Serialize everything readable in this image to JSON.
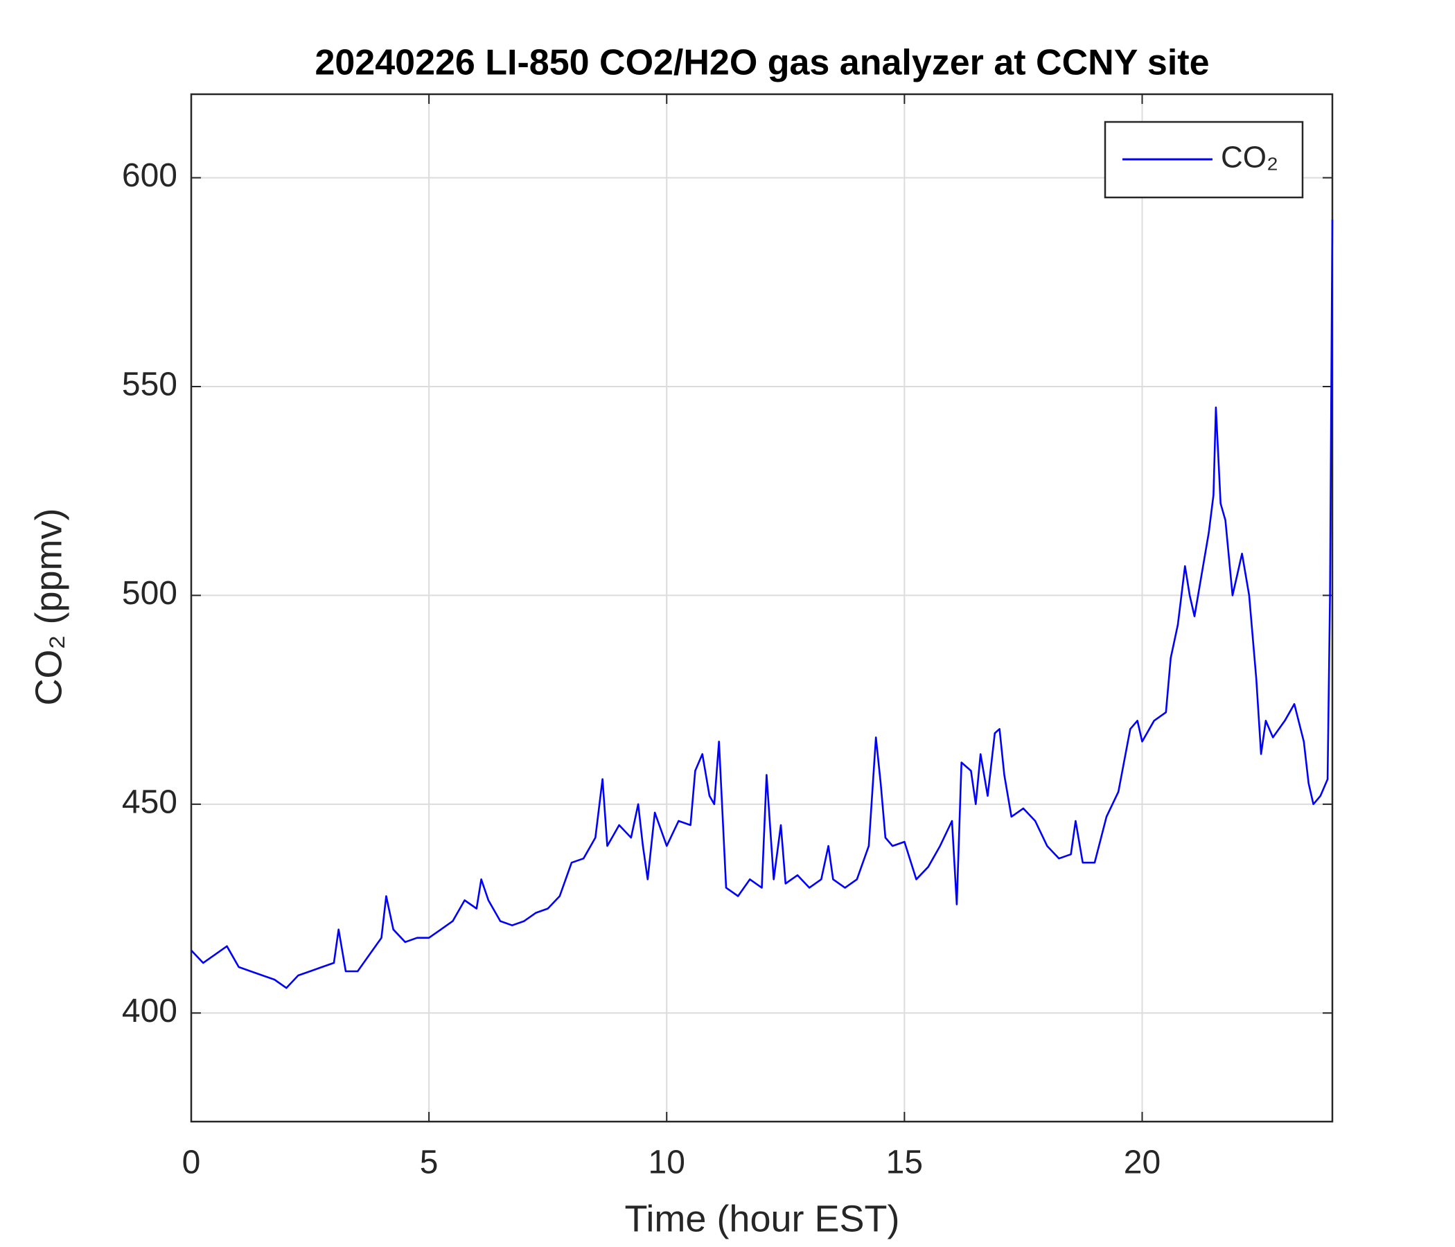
{
  "chart_data": {
    "type": "line",
    "title": "20240226 LI-850 CO2/H2O gas analyzer at CCNY site",
    "x_label": "Time (hour EST)",
    "y_label": "CO₂ (ppmv)",
    "xlim": [
      0,
      24
    ],
    "xticks": [
      0,
      5,
      10,
      15,
      20
    ],
    "ylim": [
      374,
      620
    ],
    "yticks": [
      400,
      450,
      500,
      550,
      600
    ],
    "grid": true,
    "legend": "upper right",
    "x": [
      0,
      0.25,
      0.5,
      0.75,
      1.0,
      1.25,
      1.5,
      1.75,
      2.0,
      2.25,
      2.5,
      2.75,
      3.0,
      3.1,
      3.25,
      3.5,
      3.75,
      4.0,
      4.1,
      4.25,
      4.5,
      4.75,
      5.0,
      5.25,
      5.5,
      5.75,
      6.0,
      6.1,
      6.25,
      6.5,
      6.75,
      7.0,
      7.25,
      7.5,
      7.75,
      8.0,
      8.25,
      8.5,
      8.65,
      8.75,
      9.0,
      9.25,
      9.4,
      9.5,
      9.6,
      9.75,
      10.0,
      10.25,
      10.5,
      10.6,
      10.75,
      10.9,
      11.0,
      11.1,
      11.25,
      11.5,
      11.75,
      12.0,
      12.1,
      12.25,
      12.4,
      12.5,
      12.75,
      13.0,
      13.25,
      13.4,
      13.5,
      13.75,
      14.0,
      14.25,
      14.4,
      14.5,
      14.6,
      14.75,
      15.0,
      15.25,
      15.5,
      15.75,
      16.0,
      16.1,
      16.2,
      16.4,
      16.5,
      16.6,
      16.75,
      16.9,
      17.0,
      17.1,
      17.25,
      17.5,
      17.75,
      18.0,
      18.25,
      18.5,
      18.6,
      18.75,
      19.0,
      19.25,
      19.5,
      19.75,
      19.9,
      20.0,
      20.25,
      20.5,
      20.6,
      20.75,
      20.9,
      21.0,
      21.1,
      21.25,
      21.4,
      21.5,
      21.55,
      21.65,
      21.75,
      21.9,
      22.0,
      22.1,
      22.25,
      22.4,
      22.5,
      22.6,
      22.75,
      23.0,
      23.2,
      23.4,
      23.5,
      23.6,
      23.75,
      23.9,
      23.95,
      24.0
    ],
    "series": [
      {
        "name": "CO₂",
        "color": "#0000ff",
        "values": [
          415,
          412,
          414,
          416,
          411,
          410,
          409,
          408,
          406,
          409,
          410,
          411,
          412,
          420,
          410,
          410,
          414,
          418,
          428,
          420,
          417,
          418,
          418,
          420,
          422,
          427,
          425,
          432,
          427,
          422,
          421,
          422,
          424,
          425,
          428,
          436,
          437,
          442,
          456,
          440,
          445,
          442,
          450,
          440,
          432,
          448,
          440,
          446,
          445,
          458,
          462,
          452,
          450,
          465,
          430,
          428,
          432,
          430,
          457,
          432,
          445,
          431,
          433,
          430,
          432,
          440,
          432,
          430,
          432,
          440,
          466,
          455,
          442,
          440,
          441,
          432,
          435,
          440,
          446,
          426,
          460,
          458,
          450,
          462,
          452,
          467,
          468,
          457,
          447,
          449,
          446,
          440,
          437,
          438,
          446,
          436,
          436,
          447,
          453,
          468,
          470,
          465,
          470,
          472,
          485,
          493,
          507,
          500,
          495,
          505,
          515,
          524,
          545,
          522,
          518,
          500,
          505,
          510,
          500,
          480,
          462,
          470,
          466,
          470,
          474,
          465,
          455,
          450,
          452,
          456,
          500,
          590
        ]
      }
    ]
  }
}
